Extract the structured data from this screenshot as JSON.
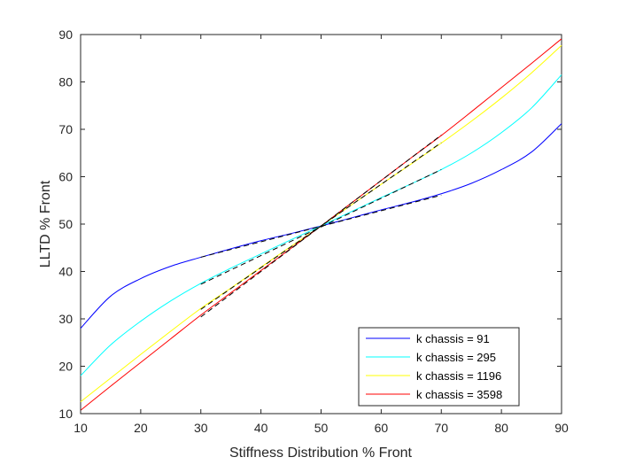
{
  "chart_data": {
    "type": "line",
    "title": "",
    "xlabel": "Stiffness Distribution % Front",
    "ylabel": "LLTD % Front",
    "xlim": [
      10,
      90
    ],
    "ylim": [
      10,
      90
    ],
    "xticks": [
      10,
      20,
      30,
      40,
      50,
      60,
      70,
      80,
      90
    ],
    "yticks": [
      10,
      20,
      30,
      40,
      50,
      60,
      70,
      80,
      90
    ],
    "grid": false,
    "legend_position": "bottom-right",
    "series": [
      {
        "name": "k chassis = 91",
        "color": "#0000ff",
        "x": [
          10,
          15,
          20,
          25,
          30,
          35,
          40,
          45,
          50,
          55,
          60,
          65,
          70,
          75,
          80,
          85,
          90
        ],
        "y": [
          28,
          34.8,
          38.5,
          41.1,
          43.0,
          44.8,
          46.5,
          48.0,
          49.6,
          51.3,
          53.0,
          54.6,
          56.4,
          58.6,
          61.5,
          65.2,
          71.2
        ]
      },
      {
        "name": "k chassis = 295",
        "color": "#00ffff",
        "x": [
          10,
          15,
          20,
          25,
          30,
          35,
          40,
          45,
          50,
          55,
          60,
          65,
          70,
          75,
          80,
          85,
          90
        ],
        "y": [
          18,
          24.5,
          29.5,
          33.8,
          37.5,
          40.7,
          43.7,
          46.7,
          49.6,
          52.6,
          55.6,
          58.5,
          61.5,
          65.0,
          69.3,
          74.5,
          81.5
        ]
      },
      {
        "name": "k chassis = 1196",
        "color": "#ffff00",
        "x": [
          10,
          15,
          20,
          25,
          30,
          35,
          40,
          45,
          50,
          55,
          60,
          65,
          70,
          75,
          80,
          85,
          90
        ],
        "y": [
          12.5,
          17.5,
          22.5,
          27.4,
          32.2,
          36.5,
          40.9,
          45.3,
          49.6,
          54.0,
          58.4,
          62.7,
          67.1,
          71.7,
          76.6,
          81.9,
          87.7
        ]
      },
      {
        "name": "k chassis = 3598",
        "color": "#ff0000",
        "x": [
          10,
          15,
          20,
          25,
          30,
          35,
          40,
          45,
          50,
          55,
          60,
          65,
          70,
          75,
          80,
          85,
          90
        ],
        "y": [
          10.7,
          15.8,
          20.8,
          25.8,
          30.8,
          35.5,
          40.2,
          44.9,
          49.6,
          54.4,
          59.2,
          64.0,
          68.7,
          73.7,
          78.8,
          83.9,
          89.1
        ]
      }
    ],
    "tangent_lines": [
      {
        "color": "#000000",
        "style": "dashed",
        "x": [
          30,
          70
        ],
        "y": [
          43.0,
          56.1
        ]
      },
      {
        "color": "#000000",
        "style": "dashed",
        "x": [
          30,
          70
        ],
        "y": [
          37.3,
          61.5
        ]
      },
      {
        "color": "#000000",
        "style": "dashed",
        "x": [
          30,
          70
        ],
        "y": [
          32.0,
          67.2
        ]
      },
      {
        "color": "#000000",
        "style": "dashed",
        "x": [
          30,
          70
        ],
        "y": [
          30.4,
          68.8
        ]
      }
    ]
  }
}
